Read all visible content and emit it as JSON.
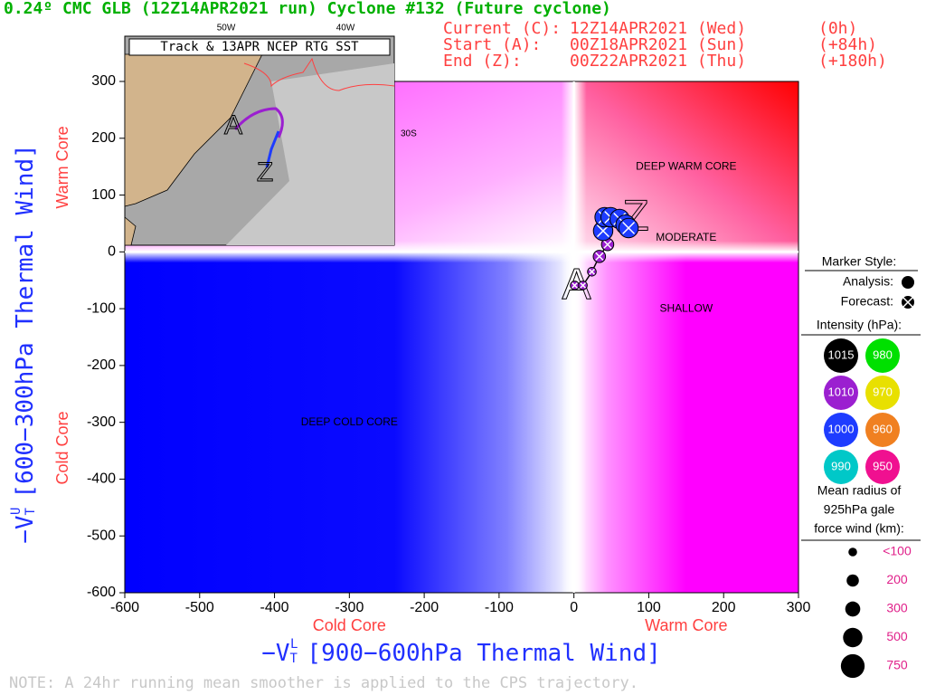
{
  "chart_data": {
    "type": "phase",
    "title": "0.24º CMC GLB (12Z14APR2021 run) Cyclone #132 (Future cyclone)",
    "info": [
      [
        "Current (C):",
        "12Z14APR2021 (Wed)",
        "(0h)"
      ],
      [
        "Start (A):",
        "00Z18APR2021 (Sun)",
        "(+84h)"
      ],
      [
        "End (Z):",
        "00Z22APR2021 (Thu)",
        "(+180h)"
      ]
    ],
    "x_label": {
      "symbol": "−V",
      "sub": "T",
      "sup": "L",
      "text": "[900−600hPa Thermal Wind]"
    },
    "y_label": {
      "symbol": "−V",
      "sub": "T",
      "sup": "U",
      "text": "[600−300hPa Thermal Wind]"
    },
    "x_side_labels": [
      "Cold Core",
      "Warm Core"
    ],
    "y_side_labels": [
      "Warm Core",
      "Cold Core"
    ],
    "regions": [
      {
        "label": "DEEP WARM CORE",
        "x": 150,
        "y": 150
      },
      {
        "label": "MODERATE",
        "x": 150,
        "y": 25
      },
      {
        "label": "SHALLOW",
        "x": 150,
        "y": -100
      },
      {
        "label": "DEEP COLD CORE",
        "x": -300,
        "y": -300
      }
    ],
    "xlim": [
      -600,
      300
    ],
    "ylim": [
      -600,
      300
    ],
    "xticks": [
      -600,
      -500,
      -400,
      -300,
      -200,
      -100,
      0,
      100,
      200,
      300
    ],
    "yticks": [
      -600,
      -500,
      -400,
      -300,
      -200,
      -100,
      0,
      100,
      200,
      300
    ],
    "x": [
      1,
      12,
      24,
      34,
      45,
      39,
      41,
      49,
      61,
      69,
      73
    ],
    "y": [
      -59,
      -59,
      -35,
      -8,
      13,
      37,
      61,
      61,
      58,
      48,
      42
    ],
    "sizes": [
      100,
      100,
      100,
      200,
      200,
      500,
      500,
      500,
      500,
      500,
      500
    ],
    "colors": [
      "#9b1fd0",
      "#9b1fd0",
      "#9b1fd0",
      "#9b1fd0",
      "#9b1fd0",
      "#1e3cff",
      "#1e3cff",
      "#1e3cff",
      "#1e3cff",
      "#1e3cff",
      "#1e3cff"
    ],
    "start_label": "A",
    "end_label": "Z",
    "inset": {
      "title": "Track & 13APR NCEP RTG SST",
      "lon_labels": [
        "50W",
        "40W"
      ],
      "lat_label": "30S"
    },
    "legend": {
      "marker_title": "Marker Style:",
      "analysis": "Analysis:",
      "forecast": "Forecast:",
      "intensity_title": "Intensity (hPa):",
      "intensity": [
        {
          "value": 1015,
          "color": "#000000"
        },
        {
          "value": 980,
          "color": "#00e000"
        },
        {
          "value": 1010,
          "color": "#9b1fd0"
        },
        {
          "value": 970,
          "color": "#e8e000"
        },
        {
          "value": 1000,
          "color": "#1e3cff"
        },
        {
          "value": 960,
          "color": "#f08020"
        },
        {
          "value": 990,
          "color": "#00c8c8"
        },
        {
          "value": 950,
          "color": "#f01090"
        }
      ],
      "size_title": [
        "Mean radius of",
        "925hPa gale",
        "force wind (km):"
      ],
      "sizes": [
        {
          "value": 100,
          "label": "<100"
        },
        200,
        300,
        500,
        750
      ]
    },
    "note": "NOTE:  A 24hr running mean smoother is applied to the CPS trajectory."
  }
}
